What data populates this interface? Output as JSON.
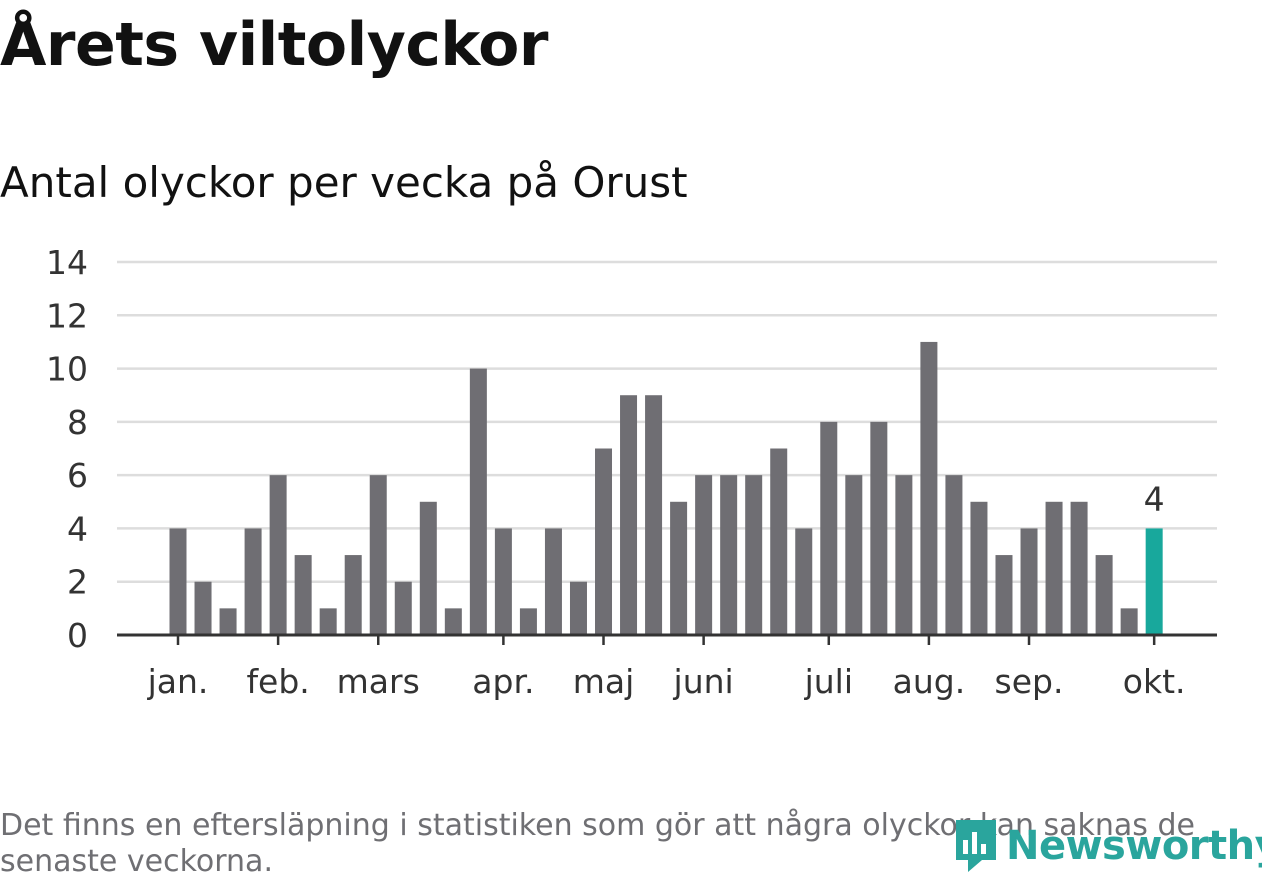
{
  "header": {
    "title": "Årets viltolyckor",
    "subtitle": "Antal olyckor per vecka på Orust"
  },
  "footer": {
    "note": "Det finns en eftersläpning i statistiken som gör att några olyckor kan saknas de senaste veckorna.",
    "logo_text": "Newsworthy"
  },
  "colors": {
    "bar": "#6f6e73",
    "highlight": "#18a89c",
    "grid": "#dddddd",
    "axis": "#333333",
    "logo": "#2aa59d"
  },
  "chart_data": {
    "type": "bar",
    "title": "Antal olyckor per vecka på Orust",
    "xlabel": "",
    "ylabel": "",
    "ylim": [
      0,
      14
    ],
    "y_ticks": [
      0,
      2,
      4,
      6,
      8,
      10,
      12,
      14
    ],
    "grid": true,
    "series": [
      {
        "name": "Antal olyckor",
        "values": [
          4,
          2,
          1,
          4,
          6,
          3,
          1,
          3,
          6,
          2,
          5,
          1,
          10,
          4,
          1,
          4,
          2,
          7,
          9,
          9,
          5,
          6,
          6,
          6,
          7,
          4,
          8,
          6,
          8,
          6,
          11,
          6,
          5,
          3,
          4,
          5,
          5,
          3,
          1,
          4
        ]
      }
    ],
    "highlight": {
      "index": 39,
      "label": "4"
    },
    "month_ticks": [
      {
        "label": "jan.",
        "index": 0
      },
      {
        "label": "feb.",
        "index": 4
      },
      {
        "label": "mars",
        "index": 8
      },
      {
        "label": "apr.",
        "index": 13
      },
      {
        "label": "maj",
        "index": 17
      },
      {
        "label": "juni",
        "index": 21
      },
      {
        "label": "juli",
        "index": 26
      },
      {
        "label": "aug.",
        "index": 30
      },
      {
        "label": "sep.",
        "index": 34
      },
      {
        "label": "okt.",
        "index": 39
      }
    ]
  }
}
